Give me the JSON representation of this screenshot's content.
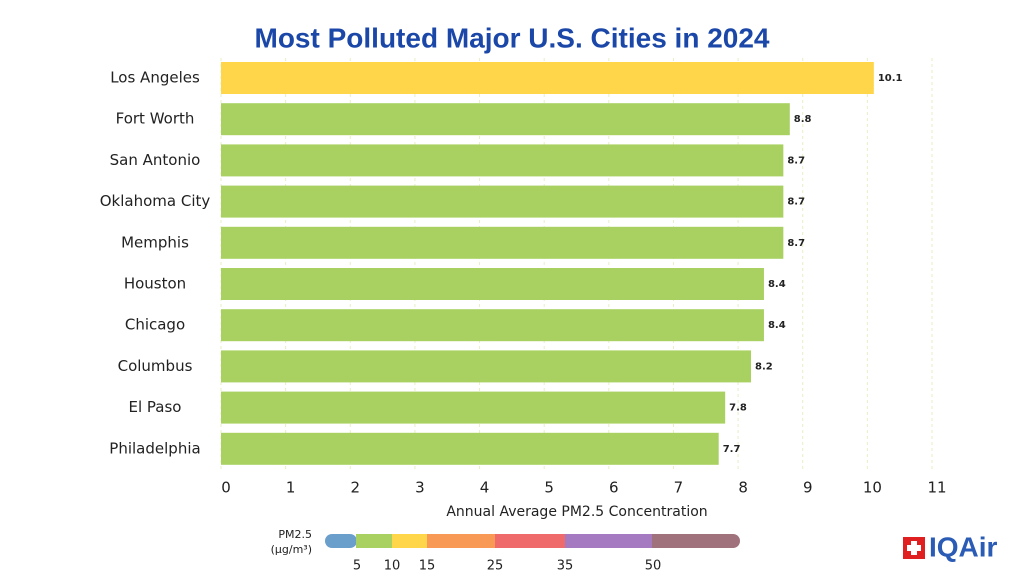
{
  "chart_data": {
    "type": "barh",
    "title": "Most Polluted Major U.S. Cities in 2024",
    "x_label": "Annual Average PM2.5 Concentration",
    "categories": [
      "Los Angeles",
      "Fort Worth",
      "San Antonio",
      "Oklahoma City",
      "Memphis",
      "Houston",
      "Chicago",
      "Columbus",
      "El Paso",
      "Philadelphia"
    ],
    "values": [
      10.1,
      8.8,
      8.7,
      8.7,
      8.7,
      8.4,
      8.4,
      8.2,
      7.8,
      7.7
    ],
    "colors": [
      "#ffd54a",
      "#a8d162",
      "#a8d162",
      "#a8d162",
      "#a8d162",
      "#a8d162",
      "#a8d162",
      "#a8d162",
      "#a8d162",
      "#a8d162"
    ],
    "xlim": [
      0,
      11
    ],
    "xticks": [
      0,
      1,
      2,
      3,
      4,
      5,
      6,
      7,
      8,
      9,
      10,
      11
    ],
    "grid": true
  },
  "aqi_scale": {
    "label": "PM2.5",
    "unit": "(μg/m³)",
    "breaks": [
      5,
      10,
      15,
      25,
      35,
      50
    ],
    "colors": [
      "#6a9fcc",
      "#a8d162",
      "#ffd54a",
      "#f89a55",
      "#ef6b6b",
      "#a57ac0",
      "#a0727c"
    ]
  },
  "logo": "IQAir"
}
